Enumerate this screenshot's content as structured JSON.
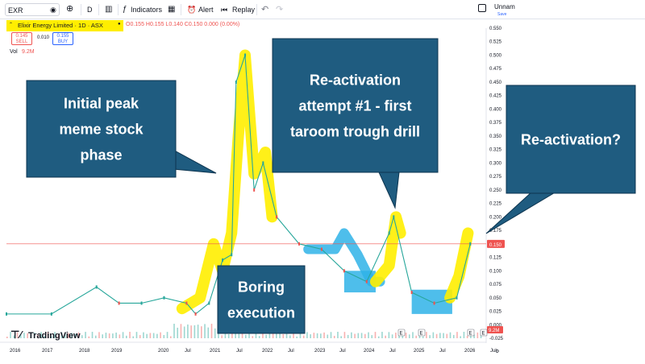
{
  "toolbar": {
    "symbol": "EXR",
    "interval": "D",
    "indicators": "Indicators",
    "alert": "Alert",
    "replay": "Replay",
    "layout_name": "Unnam",
    "save": "Save"
  },
  "legend": {
    "title": "Elixir Energy Limited · 1D · ASX",
    "ohlc": "O0.155 H0.155 L0.140 C0.150 0.000 (0.00%)",
    "sell_price": "0.145",
    "sell_label": "SELL",
    "spread": "0.010",
    "buy_price": "0.155",
    "buy_label": "BUY",
    "vol_label": "Vol",
    "vol_value": "9.2M"
  },
  "price_axis": {
    "ticks": [
      "0.550",
      "0.525",
      "0.500",
      "0.475",
      "0.450",
      "0.425",
      "0.400",
      "0.375",
      "0.350",
      "0.325",
      "0.300",
      "0.275",
      "0.250",
      "0.225",
      "0.200",
      "0.175",
      "0.150",
      "0.125",
      "0.100",
      "0.075",
      "0.050",
      "0.025",
      "0.000",
      "-0.025"
    ],
    "current_price": "0.150",
    "volume_badge": "9.2M"
  },
  "time_axis": {
    "labels": [
      "2016",
      "2017",
      "2018",
      "2019",
      "2020",
      "Jul",
      "2021",
      "Jul",
      "2022",
      "Jul",
      "2023",
      "Jul",
      "2024",
      "Jul",
      "2025",
      "Jul",
      "2026",
      "Jul"
    ]
  },
  "watermark": "TradingView",
  "annotations": {
    "callout_1": [
      "Initial peak",
      "meme stock",
      "phase"
    ],
    "callout_2": [
      "Re-activation",
      "attempt #1 - first",
      "taroom trough drill"
    ],
    "callout_3": [
      "Re-activation?"
    ],
    "callout_4": [
      "Boring",
      "execution"
    ]
  },
  "event_markers": [
    "E",
    "E",
    "E",
    "E"
  ],
  "colors": {
    "up": "#26a69a",
    "down": "#ef5350",
    "callout": "#1f5c80",
    "highlight_yellow": "#ffee00",
    "highlight_blue": "#2fb3e8"
  },
  "chart_data": {
    "type": "line",
    "title": "Elixir Energy Limited · 1D · ASX",
    "x": [
      "2016",
      "2017",
      "2018",
      "2018.5",
      "2019",
      "2019.5",
      "2020",
      "2020.2",
      "2020.5",
      "2020.8",
      "2021",
      "2021.1",
      "2021.3",
      "2021.5",
      "2021.7",
      "2022",
      "2022.5",
      "2023",
      "2023.5",
      "2024",
      "2024.5",
      "2024.6",
      "2025",
      "2025.5",
      "2026",
      "2026.3"
    ],
    "series": [
      {
        "values": [
          0.02,
          0.02,
          0.07,
          0.04,
          0.04,
          0.05,
          0.04,
          0.02,
          0.04,
          0.12,
          0.13,
          0.45,
          0.5,
          0.25,
          0.3,
          0.2,
          0.15,
          0.14,
          0.1,
          0.08,
          0.17,
          0.2,
          0.06,
          0.04,
          0.05,
          0.15
        ]
      }
    ],
    "ylim": [
      -0.025,
      0.55
    ]
  }
}
